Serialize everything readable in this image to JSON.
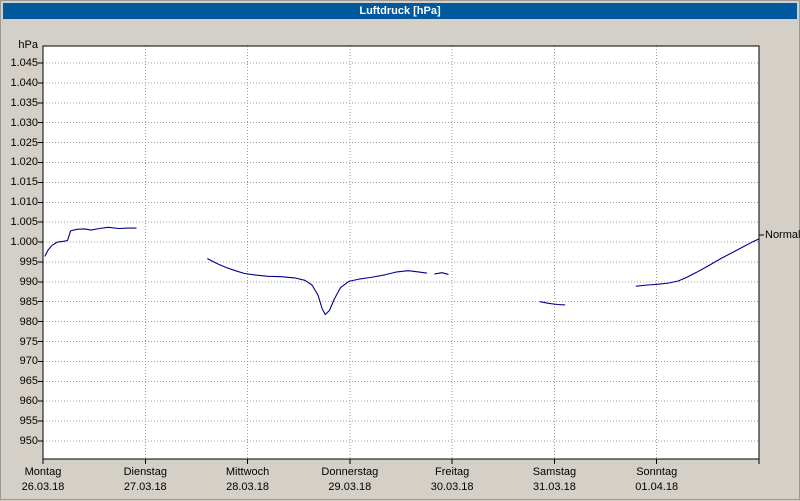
{
  "window": {
    "title": "Luftdruck [hPa]"
  },
  "colors": {
    "titlebar": "#00599d",
    "titlebar_text": "#ffffff",
    "background": "#d4d0c8",
    "plot_background": "#ffffff",
    "line": "#00008c",
    "grid": "#9c9c9c"
  },
  "chart_data": {
    "type": "line",
    "title": "Luftdruck [hPa]",
    "y_axis_label": "hPa",
    "unit": "hPa",
    "grid": true,
    "y_range": [
      950,
      1045
    ],
    "y_ticks": [
      1045,
      1040,
      1035,
      1030,
      1025,
      1020,
      1015,
      1010,
      1005,
      1000,
      995,
      990,
      985,
      980,
      975,
      970,
      965,
      960,
      955,
      950
    ],
    "y_tick_labels": [
      "1.045",
      "1.040",
      "1.035",
      "1.030",
      "1.025",
      "1.020",
      "1.015",
      "1.010",
      "1.005",
      "1.000",
      "995",
      "990",
      "985",
      "980",
      "975",
      "970",
      "965",
      "960",
      "955",
      "950"
    ],
    "x_days": [
      {
        "name": "Montag",
        "date": "26.03.18"
      },
      {
        "name": "Dienstag",
        "date": "27.03.18"
      },
      {
        "name": "Mittwoch",
        "date": "28.03.18"
      },
      {
        "name": "Donnerstag",
        "date": "29.03.18"
      },
      {
        "name": "Freitag",
        "date": "30.03.18"
      },
      {
        "name": "Samstag",
        "date": "31.03.18"
      },
      {
        "name": "Sonntag",
        "date": "01.04.18"
      }
    ],
    "normal_label": "Normal",
    "normal_value": 1001.8,
    "line_color": "#00008c",
    "grid_color": "#9c9c9c",
    "segments": [
      [
        [
          0.02,
          996.5
        ],
        [
          0.05,
          998.0
        ],
        [
          0.09,
          999.2
        ],
        [
          0.14,
          1000.0
        ],
        [
          0.2,
          1000.2
        ],
        [
          0.24,
          1000.4
        ],
        [
          0.27,
          1002.8
        ],
        [
          0.33,
          1003.2
        ],
        [
          0.41,
          1003.3
        ],
        [
          0.47,
          1003.0
        ],
        [
          0.55,
          1003.4
        ],
        [
          0.64,
          1003.7
        ],
        [
          0.74,
          1003.4
        ],
        [
          0.83,
          1003.5
        ],
        [
          0.91,
          1003.5
        ]
      ],
      [
        [
          1.61,
          995.8
        ],
        [
          1.7,
          994.6
        ],
        [
          1.79,
          993.6
        ],
        [
          1.88,
          992.8
        ],
        [
          1.97,
          992.1
        ],
        [
          2.08,
          991.7
        ],
        [
          2.2,
          991.4
        ],
        [
          2.33,
          991.3
        ],
        [
          2.46,
          991.0
        ],
        [
          2.56,
          990.4
        ],
        [
          2.63,
          989.2
        ],
        [
          2.69,
          986.6
        ],
        [
          2.73,
          983.2
        ],
        [
          2.76,
          981.8
        ],
        [
          2.8,
          982.8
        ],
        [
          2.85,
          985.8
        ],
        [
          2.91,
          988.6
        ],
        [
          2.99,
          990.1
        ],
        [
          3.09,
          990.7
        ],
        [
          3.2,
          991.1
        ],
        [
          3.33,
          991.7
        ],
        [
          3.46,
          992.5
        ],
        [
          3.57,
          992.8
        ],
        [
          3.67,
          992.5
        ],
        [
          3.75,
          992.2
        ]
      ],
      [
        [
          3.83,
          992.0
        ],
        [
          3.9,
          992.3
        ],
        [
          3.96,
          991.9
        ]
      ],
      [
        [
          4.86,
          985.0
        ],
        [
          4.94,
          984.6
        ],
        [
          5.03,
          984.3
        ],
        [
          5.1,
          984.2
        ]
      ],
      [
        [
          5.8,
          988.9
        ],
        [
          5.91,
          989.2
        ],
        [
          6.02,
          989.4
        ],
        [
          6.12,
          989.7
        ],
        [
          6.21,
          990.2
        ],
        [
          6.29,
          991.1
        ],
        [
          6.39,
          992.4
        ],
        [
          6.51,
          994.1
        ],
        [
          6.63,
          995.9
        ],
        [
          6.75,
          997.5
        ],
        [
          6.86,
          999.0
        ],
        [
          6.94,
          1000.1
        ],
        [
          7.0,
          1000.8
        ]
      ]
    ]
  }
}
